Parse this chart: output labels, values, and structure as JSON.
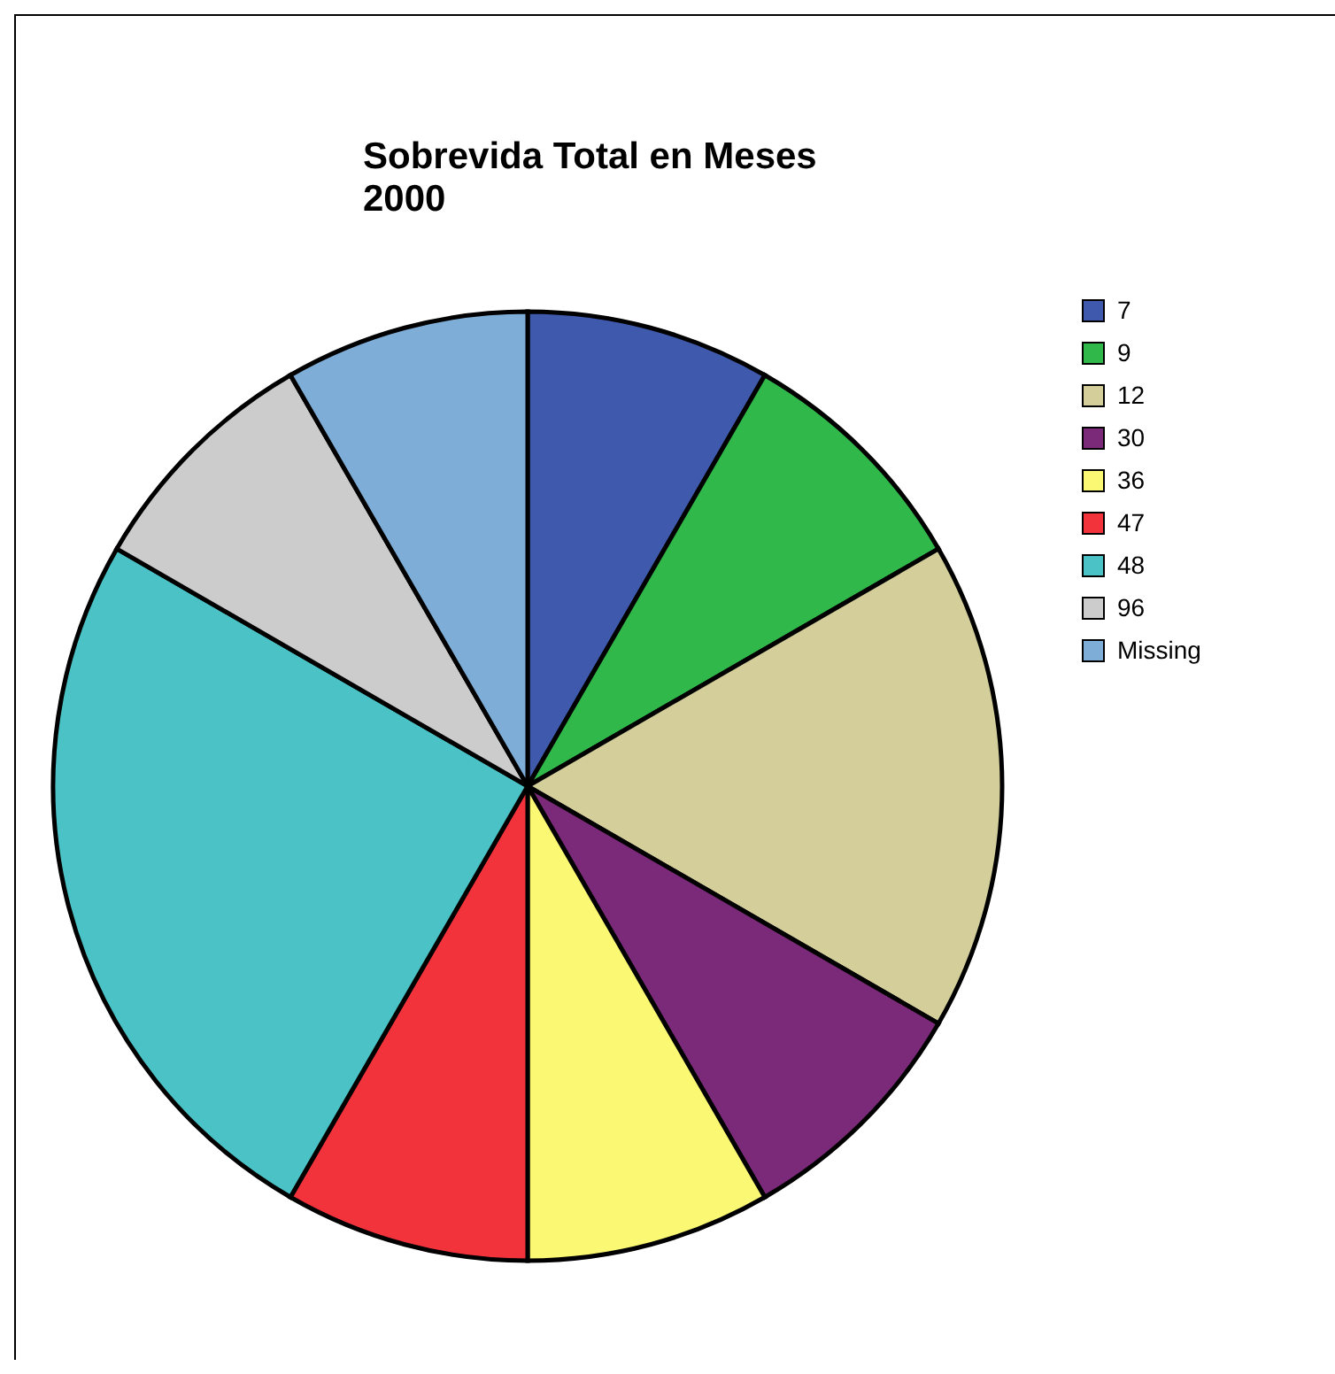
{
  "chart_data": {
    "type": "pie",
    "title": "Sobrevida Total  en Meses\n2000",
    "categories": [
      "7",
      "9",
      "12",
      "30",
      "36",
      "47",
      "48",
      "96",
      "Missing"
    ],
    "values": [
      8.33,
      8.33,
      16.67,
      8.33,
      8.33,
      8.33,
      25,
      8.33,
      8.33
    ],
    "colors": [
      "#3f5aad",
      "#31b84a",
      "#d3ce9a",
      "#7b2a7a",
      "#fbf974",
      "#f2333b",
      "#4bc3c6",
      "#cccccc",
      "#7eaed8"
    ],
    "legend": "right"
  }
}
